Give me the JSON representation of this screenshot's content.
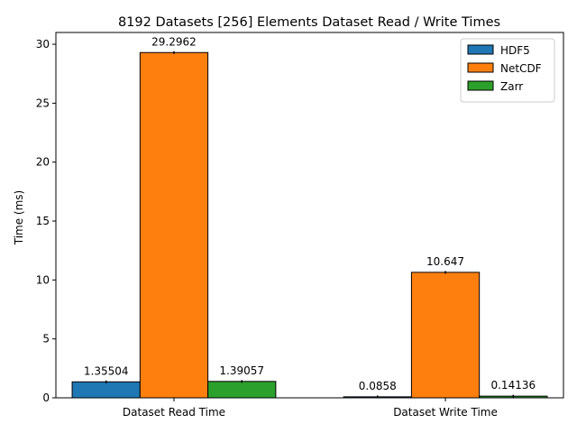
{
  "chart_data": {
    "type": "bar",
    "title": "8192 Datasets [256] Elements Dataset Read / Write Times",
    "xlabel": "",
    "ylabel": "Time (ms)",
    "categories": [
      "Dataset Read Time",
      "Dataset Write Time"
    ],
    "series": [
      {
        "name": "HDF5",
        "color": "#1f77b4",
        "values": [
          1.35504,
          0.0858
        ],
        "labels": [
          "1.35504",
          "0.0858"
        ]
      },
      {
        "name": "NetCDF",
        "color": "#ff7f0e",
        "values": [
          29.2962,
          10.647
        ],
        "labels": [
          "29.2962",
          "10.647"
        ]
      },
      {
        "name": "Zarr",
        "color": "#2ca02c",
        "values": [
          1.39057,
          0.14136
        ],
        "labels": [
          "1.39057",
          "0.14136"
        ]
      }
    ],
    "ylim": [
      0,
      31
    ],
    "yticks": [
      0,
      5,
      10,
      15,
      20,
      25,
      30
    ],
    "legend": "top-right",
    "grid": false
  }
}
